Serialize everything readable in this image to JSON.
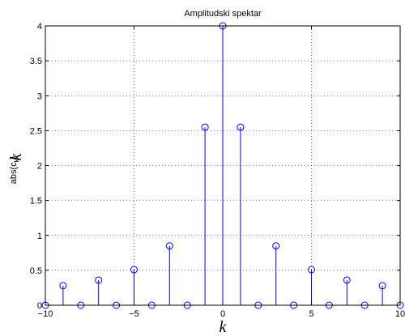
{
  "chart_data": {
    "type": "stem",
    "title": "Amplitudski spektar",
    "xlabel": "k",
    "ylabel": "abs(c",
    "ylabel_subscript": "k",
    "ylabel_close": ")",
    "ylabel_overlay": "k",
    "xlim": [
      -10,
      10
    ],
    "ylim": [
      0,
      4
    ],
    "xticks": [
      -10,
      -5,
      0,
      5,
      10
    ],
    "xtick_labels": [
      "−10",
      "−5",
      "0",
      "5",
      "10"
    ],
    "yticks": [
      0,
      0.5,
      1,
      1.5,
      2,
      2.5,
      3,
      3.5,
      4
    ],
    "ytick_labels": [
      "0",
      "0.5",
      "1",
      "1.5",
      "2",
      "2.5",
      "3",
      "3.5",
      "4"
    ],
    "grid": true,
    "series": [
      {
        "color": "#0000ff",
        "marker": "circle",
        "x": [
          -10,
          -9,
          -8,
          -7,
          -6,
          -5,
          -4,
          -3,
          -2,
          -1,
          0,
          1,
          2,
          3,
          4,
          5,
          6,
          7,
          8,
          9,
          10
        ],
        "y": [
          0,
          0.28,
          0,
          0.36,
          0,
          0.51,
          0,
          0.85,
          0,
          2.55,
          4,
          2.55,
          0,
          0.85,
          0,
          0.51,
          0,
          0.36,
          0,
          0.28,
          0
        ]
      }
    ]
  }
}
